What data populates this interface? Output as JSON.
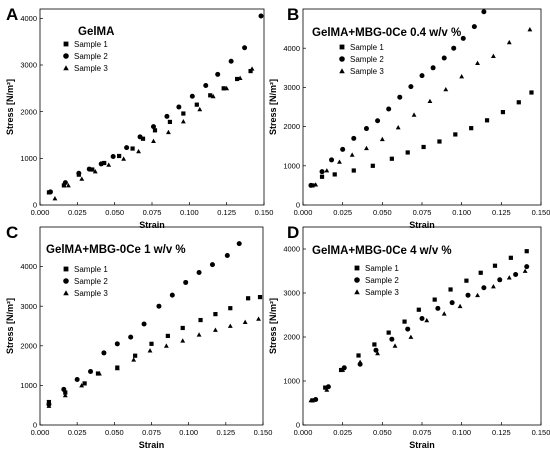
{
  "chart_data": [
    {
      "letter": "A",
      "type": "scatter",
      "title": "GelMA",
      "xlabel": "Strain",
      "ylabel": "Stress [N/m²]",
      "xlim": [
        0,
        0.15
      ],
      "ylim": [
        0,
        4200
      ],
      "xticks": [
        "0.000",
        "0.025",
        "0.050",
        "0.075",
        "0.100",
        "0.125",
        "0.150"
      ],
      "yticks": [
        "0",
        "1000",
        "2000",
        "3000",
        "4000"
      ],
      "legend_position": "top-left",
      "series": [
        {
          "name": "Sample 1",
          "marker": "square",
          "x": [
            0.006,
            0.016,
            0.026,
            0.035,
            0.043,
            0.053,
            0.062,
            0.069,
            0.077,
            0.087,
            0.096,
            0.105,
            0.114,
            0.123,
            0.132,
            0.141
          ],
          "y": [
            270,
            420,
            650,
            760,
            900,
            1050,
            1210,
            1420,
            1600,
            1780,
            1960,
            2150,
            2350,
            2500,
            2700,
            2870
          ]
        },
        {
          "name": "Sample 2",
          "marker": "circle",
          "x": [
            0.007,
            0.017,
            0.026,
            0.033,
            0.041,
            0.049,
            0.058,
            0.067,
            0.076,
            0.085,
            0.093,
            0.102,
            0.111,
            0.119,
            0.128,
            0.137,
            0.148
          ],
          "y": [
            280,
            480,
            680,
            770,
            880,
            1040,
            1230,
            1460,
            1680,
            1900,
            2100,
            2330,
            2560,
            2800,
            3080,
            3370,
            4050
          ]
        },
        {
          "name": "Sample 3",
          "marker": "triangle",
          "x": [
            0.01,
            0.019,
            0.028,
            0.037,
            0.046,
            0.056,
            0.066,
            0.076,
            0.086,
            0.096,
            0.107,
            0.116,
            0.125,
            0.134,
            0.142
          ],
          "y": [
            140,
            420,
            560,
            720,
            860,
            990,
            1150,
            1370,
            1560,
            1790,
            2050,
            2330,
            2500,
            2720,
            2920
          ]
        }
      ]
    },
    {
      "letter": "B",
      "type": "scatter",
      "title": "GelMA+MBG-0Ce 0.4 w/v %",
      "xlabel": "Strain",
      "ylabel": "Stress [N/m²]",
      "xlim": [
        0,
        0.15
      ],
      "ylim": [
        0,
        5000
      ],
      "xticks": [
        "0.000",
        "0.025",
        "0.050",
        "0.075",
        "0.100",
        "0.125",
        "0.150"
      ],
      "yticks": [
        "0",
        "1000",
        "2000",
        "3000",
        "4000"
      ],
      "legend_position": "top-left",
      "series": [
        {
          "name": "Sample 1",
          "marker": "square",
          "x": [
            0.006,
            0.012,
            0.02,
            0.032,
            0.044,
            0.056,
            0.066,
            0.076,
            0.086,
            0.096,
            0.106,
            0.116,
            0.126,
            0.136,
            0.144
          ],
          "y": [
            500,
            720,
            780,
            880,
            1000,
            1180,
            1340,
            1480,
            1620,
            1800,
            1960,
            2160,
            2370,
            2620,
            2870
          ]
        },
        {
          "name": "Sample 2",
          "marker": "circle",
          "x": [
            0.005,
            0.012,
            0.018,
            0.025,
            0.032,
            0.04,
            0.047,
            0.054,
            0.061,
            0.068,
            0.075,
            0.082,
            0.089,
            0.095,
            0.101,
            0.108,
            0.114
          ],
          "y": [
            500,
            850,
            1150,
            1420,
            1700,
            1950,
            2150,
            2450,
            2750,
            3020,
            3300,
            3500,
            3750,
            4000,
            4250,
            4550,
            4930
          ]
        },
        {
          "name": "Sample 3",
          "marker": "triangle",
          "x": [
            0.008,
            0.015,
            0.023,
            0.031,
            0.04,
            0.05,
            0.06,
            0.07,
            0.08,
            0.09,
            0.1,
            0.11,
            0.12,
            0.13,
            0.143
          ],
          "y": [
            520,
            880,
            1100,
            1280,
            1450,
            1680,
            1980,
            2300,
            2650,
            2950,
            3280,
            3620,
            3800,
            4150,
            4480
          ]
        }
      ]
    },
    {
      "letter": "C",
      "type": "scatter",
      "title": "GelMA+MBG-0Ce 1 w/v %",
      "xlabel": "Strain",
      "ylabel": "Stress [N/m²]",
      "xlim": [
        0,
        0.15
      ],
      "ylim": [
        0,
        5000
      ],
      "xticks": [
        "0.000",
        "0.025",
        "0.050",
        "0.075",
        "0.100",
        "0.125",
        "0.150"
      ],
      "yticks": [
        "0",
        "1000",
        "2000",
        "3000",
        "4000"
      ],
      "legend_position": "top-left",
      "series": [
        {
          "name": "Sample 1",
          "marker": "square",
          "x": [
            0.006,
            0.017,
            0.03,
            0.039,
            0.052,
            0.064,
            0.075,
            0.086,
            0.096,
            0.108,
            0.118,
            0.128,
            0.14,
            0.148
          ],
          "y": [
            580,
            820,
            1050,
            1300,
            1450,
            1750,
            2050,
            2250,
            2450,
            2650,
            2800,
            2950,
            3200,
            3230
          ]
        },
        {
          "name": "Sample 2",
          "marker": "circle",
          "x": [
            0.006,
            0.016,
            0.025,
            0.034,
            0.043,
            0.052,
            0.061,
            0.07,
            0.08,
            0.089,
            0.098,
            0.107,
            0.116,
            0.126,
            0.134
          ],
          "y": [
            520,
            900,
            1150,
            1350,
            1820,
            2050,
            2220,
            2550,
            3000,
            3280,
            3600,
            3850,
            4050,
            4280,
            4580
          ]
        },
        {
          "name": "Sample 3",
          "marker": "triangle",
          "x": [
            0.006,
            0.017,
            0.028,
            0.04,
            0.052,
            0.063,
            0.074,
            0.085,
            0.096,
            0.107,
            0.118,
            0.128,
            0.138,
            0.147
          ],
          "y": [
            480,
            750,
            1000,
            1300,
            1430,
            1650,
            1880,
            2000,
            2130,
            2280,
            2400,
            2500,
            2600,
            2680
          ]
        }
      ]
    },
    {
      "letter": "D",
      "type": "scatter",
      "title": "GelMA+MBG-0Ce 4 w/v %",
      "xlabel": "Strain",
      "ylabel": "Stress [N/m²]",
      "xlim": [
        0,
        0.15
      ],
      "ylim": [
        0,
        4500
      ],
      "xticks": [
        "0.000",
        "0.025",
        "0.050",
        "0.075",
        "0.100",
        "0.125",
        "0.150"
      ],
      "yticks": [
        "0",
        "1000",
        "2000",
        "3000",
        "4000"
      ],
      "legend_position": "top-left",
      "series": [
        {
          "name": "Sample 1",
          "marker": "square",
          "x": [
            0.006,
            0.014,
            0.024,
            0.035,
            0.045,
            0.054,
            0.064,
            0.073,
            0.083,
            0.093,
            0.103,
            0.112,
            0.121,
            0.131,
            0.141
          ],
          "y": [
            560,
            850,
            1250,
            1580,
            1830,
            2100,
            2350,
            2620,
            2850,
            3080,
            3280,
            3460,
            3620,
            3800,
            3950
          ]
        },
        {
          "name": "Sample 2",
          "marker": "circle",
          "x": [
            0.008,
            0.016,
            0.026,
            0.036,
            0.046,
            0.056,
            0.066,
            0.075,
            0.085,
            0.094,
            0.104,
            0.114,
            0.124,
            0.134,
            0.141
          ],
          "y": [
            580,
            870,
            1300,
            1380,
            1700,
            1950,
            2180,
            2420,
            2650,
            2780,
            2950,
            3120,
            3300,
            3420,
            3600
          ]
        },
        {
          "name": "Sample 3",
          "marker": "triangle",
          "x": [
            0.005,
            0.015,
            0.025,
            0.036,
            0.047,
            0.058,
            0.068,
            0.078,
            0.089,
            0.099,
            0.11,
            0.12,
            0.13,
            0.14
          ],
          "y": [
            560,
            800,
            1250,
            1430,
            1630,
            1800,
            2000,
            2380,
            2530,
            2700,
            2950,
            3150,
            3350,
            3500
          ]
        }
      ]
    }
  ]
}
